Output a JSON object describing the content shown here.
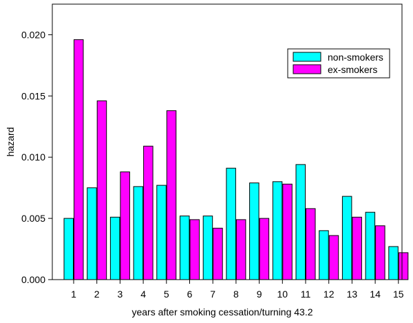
{
  "chart_data": {
    "type": "bar",
    "title": "",
    "xlabel": "years after smoking cessation/turning 43.2",
    "ylabel": "hazard",
    "ylim": [
      0,
      0.0225
    ],
    "yticks": [
      "0.000",
      "0.005",
      "0.010",
      "0.015",
      "0.020"
    ],
    "ytick_values": [
      0,
      0.005,
      0.01,
      0.015,
      0.02
    ],
    "categories": [
      "1",
      "2",
      "3",
      "4",
      "5",
      "6",
      "7",
      "8",
      "9",
      "10",
      "11",
      "12",
      "13",
      "14",
      "15"
    ],
    "grid": false,
    "legend_position": "top-right",
    "series": [
      {
        "name": "non-smokers",
        "color": "#00ffff",
        "values": [
          0.005,
          0.0075,
          0.0051,
          0.0076,
          0.0077,
          0.0052,
          0.0052,
          0.0091,
          0.0079,
          0.008,
          0.0094,
          0.004,
          0.0068,
          0.0055,
          0.0027
        ]
      },
      {
        "name": "ex-smokers",
        "color": "#ff00ff",
        "values": [
          0.0196,
          0.0146,
          0.0088,
          0.0109,
          0.0138,
          0.0049,
          0.0042,
          0.0049,
          0.005,
          0.0078,
          0.0058,
          0.0036,
          0.0051,
          0.0044,
          0.0022
        ]
      }
    ]
  }
}
